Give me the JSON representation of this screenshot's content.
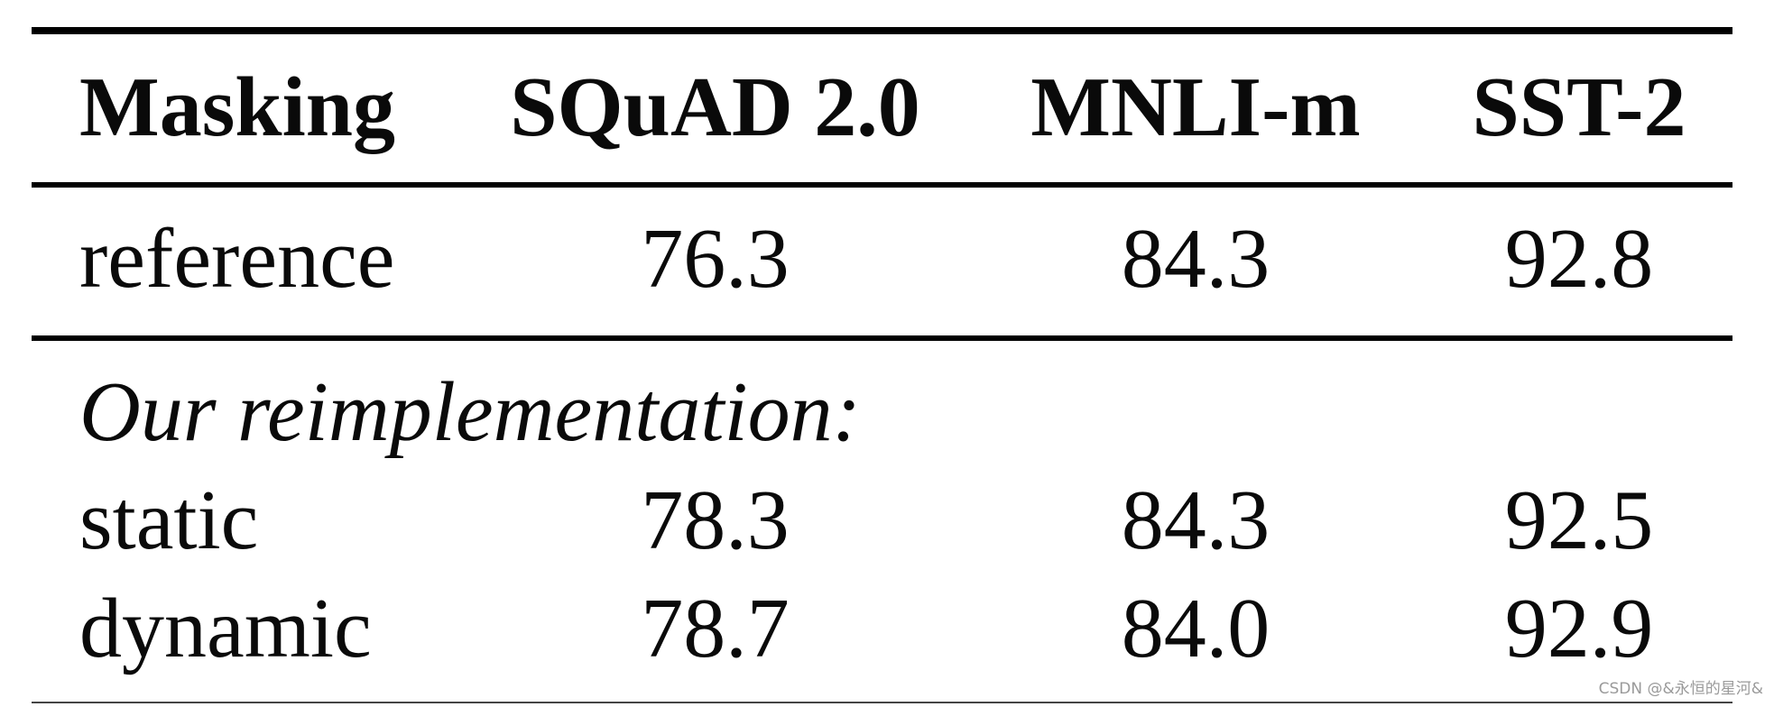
{
  "table": {
    "headers": [
      "Masking",
      "SQuAD 2.0",
      "MNLI-m",
      "SST-2"
    ],
    "reference_row": [
      "reference",
      "76.3",
      "84.3",
      "92.8"
    ],
    "section_label": "Our reimplementation:",
    "rows": [
      [
        "static",
        "78.3",
        "84.3",
        "92.5"
      ],
      [
        "dynamic",
        "78.7",
        "84.0",
        "92.9"
      ]
    ]
  },
  "watermark": "CSDN @&永恒的星河&"
}
